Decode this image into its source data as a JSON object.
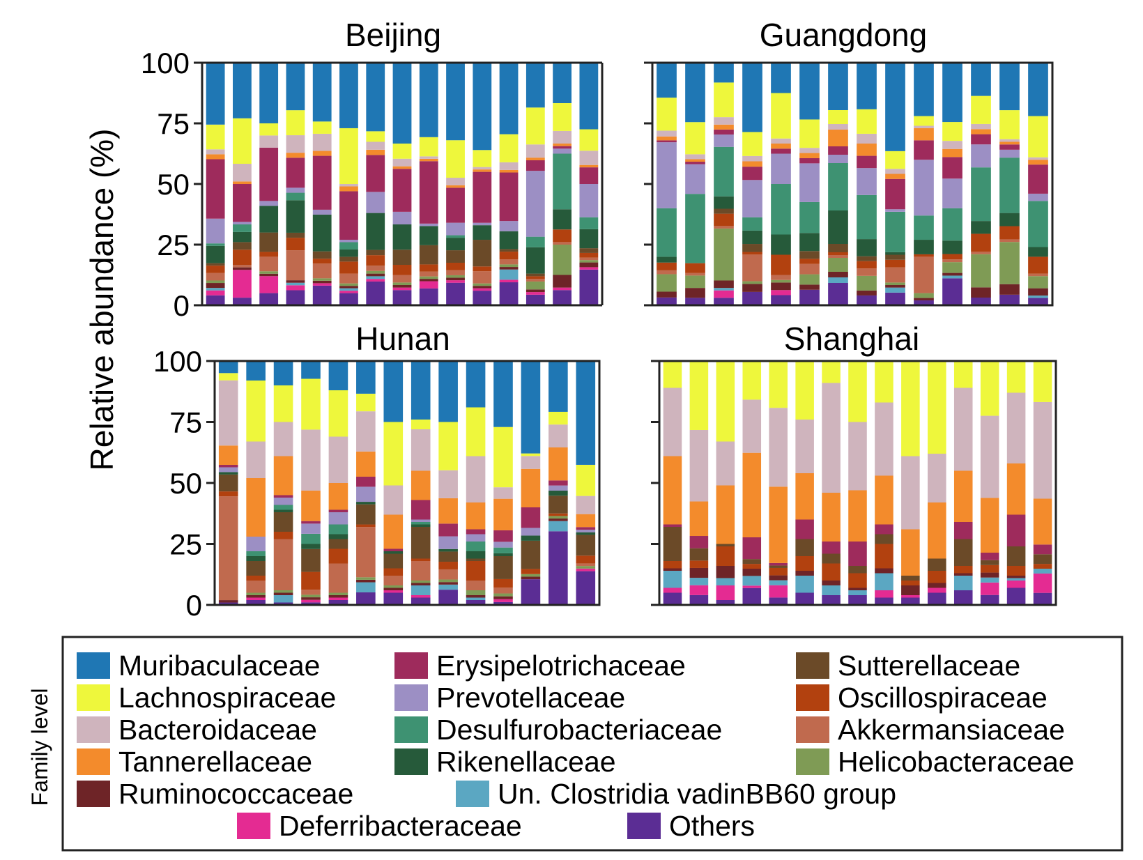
{
  "figure": {
    "ylabel": "Relative abundance (%)",
    "legend_title": "Family level"
  },
  "colors": {
    "Muribaculaceae": "#1f77b4",
    "Lachnospiraceae": "#eef73c",
    "Bacteroidaceae": "#cfb4bd",
    "Tannerellaceae": "#f38b2c",
    "Ruminococcaceae": "#6e2427",
    "Erysipelotrichaceae": "#9e2b5c",
    "Prevotellaceae": "#9c8fc4",
    "Desulfurobacteriaceae": "#3e9272",
    "Rikenellaceae": "#265a3a",
    "Sutterellaceae": "#6b4a28",
    "Oscillospiraceae": "#b2410f",
    "Akkermansiaceae": "#c06a4e",
    "Helicobacteraceae": "#7f9b55",
    "Un. Clostridia vadinBB60 group": "#5ba7c2",
    "Deferribacteraceae": "#e42b92",
    "Others": "#5b2d94"
  },
  "legend": {
    "items": [
      "Muribaculaceae",
      "Lachnospiraceae",
      "Bacteroidaceae",
      "Tannerellaceae",
      "Ruminococcaceae",
      "Erysipelotrichaceae",
      "Prevotellaceae",
      "Desulfurobacteriaceae",
      "Rikenellaceae",
      "Sutterellaceae",
      "Oscillospiraceae",
      "Akkermansiaceae",
      "Helicobacteraceae",
      "Un. Clostridia vadinBB60 group",
      "Deferribacteraceae",
      "Others"
    ]
  },
  "chart_data": [
    {
      "type": "bar",
      "stacked": true,
      "title": "Beijing",
      "ylabel": "Relative abundance (%)",
      "ylim": [
        0,
        100
      ],
      "yticks": [
        0,
        25,
        50,
        75,
        100
      ],
      "series_order": [
        "Others",
        "Deferribacteraceae",
        "Un. Clostridia vadinBB60 group",
        "Ruminococcaceae",
        "Helicobacteraceae",
        "Akkermansiaceae",
        "Oscillospiraceae",
        "Sutterellaceae",
        "Rikenellaceae",
        "Desulfurobacteriaceae",
        "Prevotellaceae",
        "Erysipelotrichaceae",
        "Tannerellaceae",
        "Bacteroidaceae",
        "Lachnospiraceae",
        "Muribaculaceae"
      ],
      "samples": [
        [
          4,
          2,
          1,
          2,
          1,
          3,
          3,
          1,
          7,
          1,
          10,
          24,
          2,
          2,
          10,
          25
        ],
        [
          3,
          11,
          0,
          1,
          0,
          1,
          6,
          3,
          4,
          3,
          1,
          15,
          1,
          7,
          18,
          22
        ],
        [
          5,
          7,
          0,
          1,
          1,
          6,
          2,
          8,
          11,
          0,
          2,
          22,
          0,
          5,
          5,
          25
        ],
        [
          6,
          2,
          1,
          1,
          0,
          12,
          5,
          2,
          13,
          3,
          2,
          12,
          2,
          7,
          10,
          19
        ],
        [
          8,
          1,
          0,
          1,
          1,
          6,
          2,
          3,
          15,
          0,
          2,
          22,
          2,
          7,
          5,
          24
        ],
        [
          5,
          1,
          1,
          1,
          1,
          4,
          5,
          2,
          3,
          3,
          1,
          20,
          2,
          1,
          23,
          27
        ],
        [
          9,
          1,
          1,
          1,
          1,
          2,
          4,
          2,
          14,
          0,
          8,
          14,
          2,
          3,
          4,
          26
        ],
        [
          6,
          1,
          0,
          1,
          1,
          3,
          4,
          6,
          10,
          0,
          5,
          17,
          1,
          3,
          6,
          32
        ],
        [
          7,
          3,
          0,
          1,
          1,
          2,
          3,
          8,
          8,
          0,
          1,
          26,
          1,
          1,
          8,
          31
        ],
        [
          9,
          1,
          0,
          1,
          1,
          2,
          3,
          5,
          5,
          1,
          5,
          14,
          1,
          3,
          15,
          31
        ],
        [
          6,
          1,
          0,
          1,
          1,
          5,
          2,
          11,
          6,
          0,
          1,
          21,
          1,
          1,
          7,
          36
        ],
        [
          9,
          1,
          4,
          1,
          1,
          2,
          3,
          1,
          7,
          0,
          4,
          19,
          1,
          3,
          11,
          28
        ],
        [
          4,
          1,
          0,
          1,
          3,
          1,
          1,
          1,
          10,
          4,
          25,
          4,
          1,
          5,
          14,
          17
        ],
        [
          6,
          1,
          0,
          5,
          12,
          1,
          5,
          0,
          8,
          22,
          2,
          1,
          1,
          5,
          11,
          16
        ],
        [
          15,
          1,
          0,
          2,
          1,
          1,
          2,
          2,
          8,
          5,
          14,
          7,
          1,
          6,
          9,
          28
        ]
      ]
    },
    {
      "type": "bar",
      "stacked": true,
      "title": "Guangdong",
      "ylabel": "Relative abundance (%)",
      "ylim": [
        0,
        100
      ],
      "yticks": [
        0,
        25,
        50,
        75,
        100
      ],
      "series_order": [
        "Others",
        "Deferribacteraceae",
        "Un. Clostridia vadinBB60 group",
        "Ruminococcaceae",
        "Helicobacteraceae",
        "Akkermansiaceae",
        "Oscillospiraceae",
        "Sutterellaceae",
        "Rikenellaceae",
        "Desulfurobacteriaceae",
        "Prevotellaceae",
        "Erysipelotrichaceae",
        "Tannerellaceae",
        "Bacteroidaceae",
        "Lachnospiraceae",
        "Muribaculaceae"
      ],
      "samples": [
        [
          4,
          0,
          0,
          3,
          9,
          2,
          4,
          0,
          3,
          25,
          34,
          1,
          2,
          3,
          17,
          18
        ],
        [
          3,
          0,
          0,
          4,
          5,
          1,
          4,
          0,
          0,
          28,
          12,
          1,
          1,
          2,
          13,
          24
        ],
        [
          3,
          3,
          1,
          3,
          21,
          1,
          5,
          2,
          5,
          20,
          5,
          2,
          2,
          3,
          14,
          8
        ],
        [
          5,
          0,
          0,
          3,
          1,
          10,
          1,
          3,
          5,
          5,
          14,
          5,
          2,
          2,
          9,
          26
        ],
        [
          4,
          2,
          0,
          3,
          1,
          2,
          8,
          0,
          8,
          20,
          12,
          2,
          2,
          2,
          18,
          12
        ],
        [
          6,
          0,
          0,
          2,
          4,
          4,
          2,
          3,
          7,
          12,
          15,
          2,
          2,
          2,
          11,
          22
        ],
        [
          8,
          0,
          2,
          2,
          5,
          1,
          1,
          3,
          12,
          17,
          3,
          3,
          6,
          2,
          5,
          17
        ],
        [
          4,
          0,
          0,
          2,
          6,
          3,
          3,
          2,
          7,
          18,
          11,
          5,
          5,
          4,
          10,
          19
        ],
        [
          5,
          0,
          2,
          1,
          1,
          6,
          3,
          2,
          1,
          16,
          1,
          12,
          2,
          2,
          7,
          35
        ],
        [
          2,
          0,
          0,
          1,
          2,
          15,
          1,
          0,
          6,
          10,
          23,
          8,
          5,
          1,
          4,
          22
        ],
        [
          10,
          0,
          1,
          1,
          4,
          1,
          2,
          0,
          5,
          12,
          11,
          8,
          3,
          3,
          7,
          22
        ],
        [
          3,
          0,
          0,
          4,
          13,
          1,
          7,
          0,
          5,
          21,
          9,
          4,
          2,
          2,
          11,
          13
        ],
        [
          4,
          0,
          0,
          4,
          16,
          1,
          5,
          0,
          5,
          21,
          3,
          2,
          1,
          1,
          11,
          18
        ],
        [
          3,
          0,
          1,
          3,
          5,
          1,
          7,
          0,
          4,
          19,
          3,
          12,
          2,
          1,
          17,
          22
        ]
      ]
    },
    {
      "type": "bar",
      "stacked": true,
      "title": "Hunan",
      "ylabel": "Relative abundance (%)",
      "ylim": [
        0,
        100
      ],
      "yticks": [
        0,
        25,
        50,
        75,
        100
      ],
      "series_order": [
        "Others",
        "Deferribacteraceae",
        "Un. Clostridia vadinBB60 group",
        "Ruminococcaceae",
        "Helicobacteraceae",
        "Akkermansiaceae",
        "Oscillospiraceae",
        "Sutterellaceae",
        "Rikenellaceae",
        "Desulfurobacteriaceae",
        "Prevotellaceae",
        "Erysipelotrichaceae",
        "Tannerellaceae",
        "Bacteroidaceae",
        "Lachnospiraceae",
        "Muribaculaceae"
      ],
      "samples": [
        [
          1,
          0,
          0,
          1,
          0,
          43,
          2,
          7,
          1,
          0,
          2,
          1,
          8,
          27,
          3,
          5
        ],
        [
          2,
          1,
          0,
          1,
          1,
          5,
          2,
          6,
          2,
          2,
          6,
          0,
          24,
          15,
          25,
          8
        ],
        [
          1,
          0,
          3,
          1,
          1,
          21,
          3,
          8,
          1,
          2,
          3,
          1,
          16,
          14,
          15,
          10
        ],
        [
          1,
          1,
          0,
          1,
          1,
          2,
          7,
          9,
          2,
          4,
          4,
          1,
          12,
          24,
          20,
          7
        ],
        [
          2,
          1,
          0,
          1,
          1,
          12,
          6,
          4,
          2,
          4,
          5,
          1,
          11,
          19,
          19,
          12
        ],
        [
          5,
          0,
          4,
          1,
          1,
          20,
          1,
          8,
          1,
          0,
          6,
          4,
          10,
          16,
          7,
          13
        ],
        [
          5,
          1,
          0,
          1,
          1,
          4,
          3,
          6,
          1,
          0,
          0,
          1,
          14,
          12,
          26,
          25
        ],
        [
          3,
          1,
          4,
          1,
          1,
          8,
          1,
          13,
          1,
          1,
          1,
          8,
          12,
          17,
          4,
          24
        ],
        [
          6,
          0,
          2,
          1,
          1,
          4,
          3,
          4,
          1,
          0,
          5,
          5,
          10,
          11,
          19,
          24
        ],
        [
          2,
          0,
          1,
          1,
          2,
          4,
          8,
          1,
          3,
          4,
          3,
          2,
          11,
          19,
          20,
          19
        ],
        [
          1,
          1,
          0,
          1,
          1,
          2,
          3,
          8,
          1,
          2,
          2,
          4,
          11,
          4,
          21,
          23
        ],
        [
          10,
          0,
          0,
          1,
          1,
          0,
          2,
          11,
          2,
          0,
          3,
          8,
          15,
          5,
          1,
          36
        ],
        [
          29,
          0,
          4,
          1,
          1,
          0,
          1,
          7,
          2,
          0,
          2,
          2,
          13,
          9,
          5,
          20
        ],
        [
          13,
          1,
          0,
          0,
          1,
          1,
          3,
          8,
          1,
          0,
          1,
          1,
          5,
          7,
          12,
          40
        ]
      ]
    },
    {
      "type": "bar",
      "stacked": true,
      "title": "Shanghai",
      "ylabel": "Relative abundance (%)",
      "ylim": [
        0,
        100
      ],
      "yticks": [
        0,
        25,
        50,
        75,
        100
      ],
      "series_order": [
        "Others",
        "Deferribacteraceae",
        "Un. Clostridia vadinBB60 group",
        "Ruminococcaceae",
        "Helicobacteraceae",
        "Akkermansiaceae",
        "Oscillospiraceae",
        "Sutterellaceae",
        "Rikenellaceae",
        "Desulfurobacteriaceae",
        "Prevotellaceae",
        "Erysipelotrichaceae",
        "Tannerellaceae",
        "Bacteroidaceae",
        "Lachnospiraceae",
        "Muribaculaceae"
      ],
      "samples": [
        [
          5,
          2,
          7,
          1,
          0,
          0,
          3,
          14,
          0,
          0,
          0,
          1,
          28,
          28,
          11,
          0
        ],
        [
          4,
          4,
          3,
          4,
          0,
          0,
          3,
          5,
          0,
          0,
          0,
          5,
          14,
          29,
          28,
          0
        ],
        [
          2,
          6,
          3,
          5,
          0,
          0,
          8,
          1,
          0,
          0,
          0,
          0,
          24,
          18,
          33,
          0
        ],
        [
          7,
          1,
          4,
          3,
          0,
          0,
          2,
          2,
          0,
          0,
          0,
          9,
          35,
          22,
          16,
          0
        ],
        [
          3,
          5,
          2,
          2,
          0,
          0,
          3,
          1,
          0,
          0,
          0,
          1,
          31,
          32,
          19,
          0
        ],
        [
          5,
          0,
          7,
          2,
          0,
          0,
          6,
          7,
          0,
          0,
          0,
          8,
          19,
          22,
          24,
          0
        ],
        [
          4,
          0,
          4,
          2,
          0,
          0,
          7,
          4,
          0,
          0,
          0,
          5,
          20,
          45,
          9,
          0
        ],
        [
          4,
          0,
          2,
          1,
          0,
          0,
          6,
          3,
          0,
          0,
          0,
          10,
          21,
          28,
          25,
          0
        ],
        [
          3,
          3,
          7,
          2,
          0,
          0,
          10,
          4,
          0,
          0,
          0,
          4,
          20,
          30,
          17,
          0
        ],
        [
          3,
          1,
          0,
          4,
          0,
          0,
          2,
          2,
          0,
          0,
          0,
          0,
          19,
          30,
          39,
          0
        ],
        [
          5,
          2,
          0,
          2,
          0,
          0,
          5,
          5,
          0,
          0,
          0,
          0,
          23,
          20,
          38,
          0
        ],
        [
          6,
          0,
          6,
          1,
          0,
          0,
          3,
          11,
          0,
          0,
          0,
          7,
          21,
          34,
          11,
          0
        ],
        [
          4,
          5,
          2,
          2,
          0,
          0,
          3,
          2,
          0,
          0,
          0,
          3,
          22,
          33,
          22,
          0
        ],
        [
          7,
          3,
          1,
          1,
          0,
          0,
          4,
          8,
          0,
          0,
          0,
          13,
          21,
          29,
          13,
          0
        ],
        [
          5,
          8,
          2,
          0,
          0,
          0,
          2,
          4,
          0,
          0,
          0,
          4,
          19,
          40,
          17,
          0
        ]
      ]
    }
  ]
}
